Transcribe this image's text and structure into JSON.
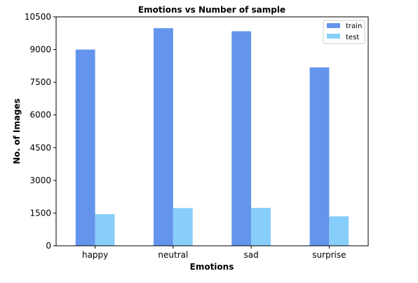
{
  "chart_data": {
    "type": "bar",
    "title": "Emotions vs Number of sample",
    "xlabel": "Emotions",
    "ylabel": "No. of Images",
    "categories": [
      "happy",
      "neutral",
      "sad",
      "surprise"
    ],
    "series": [
      {
        "name": "train",
        "values": [
          9000,
          9980,
          9840,
          8180
        ],
        "color": "#6495ed"
      },
      {
        "name": "test",
        "values": [
          1450,
          1730,
          1740,
          1350
        ],
        "color": "#87cefa"
      }
    ],
    "ylim": [
      0,
      10500
    ],
    "yticks": [
      0,
      1500,
      3000,
      4500,
      6000,
      7500,
      9000,
      10500
    ],
    "grid": false,
    "legend_position": "top-right"
  }
}
